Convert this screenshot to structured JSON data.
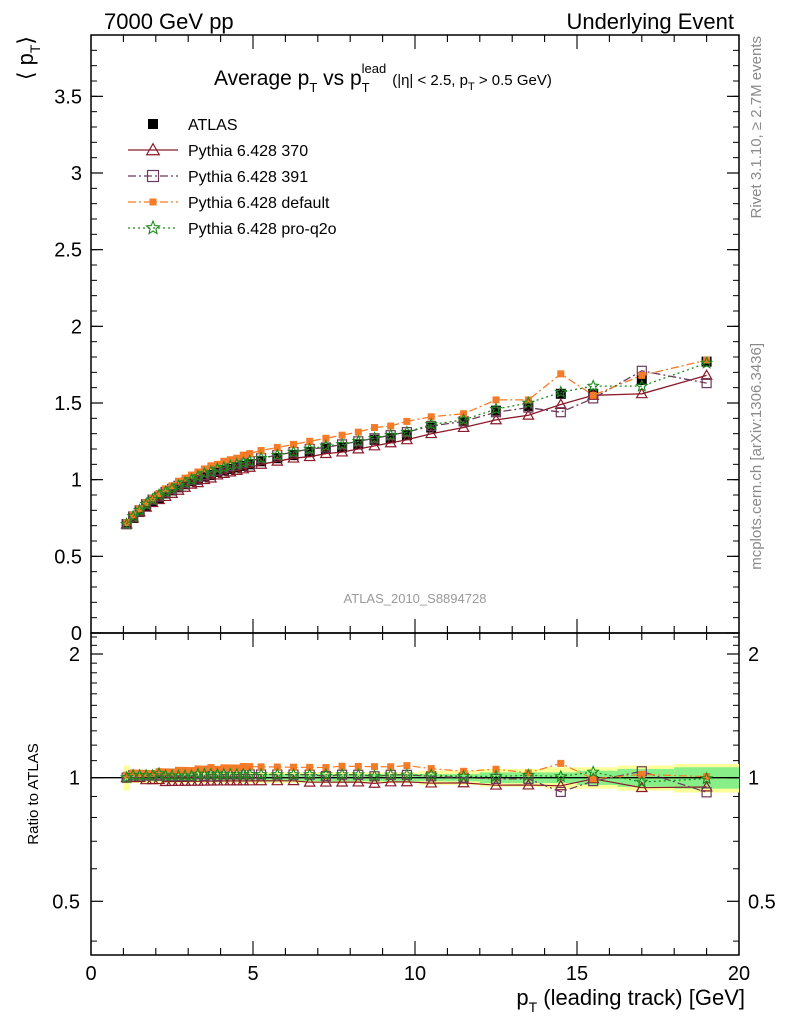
{
  "header": {
    "left": "7000 GeV pp",
    "right": "Underlying Event"
  },
  "side_labels": {
    "rivet": "Rivet 3.1.10, ≥ 2.7M events",
    "mcplots": "mcplots.cern.ch [arXiv:1306.3436]"
  },
  "watermark": "ATLAS_2010_S8894728",
  "title": {
    "main": "Average p",
    "main_sub": "T",
    "vs": " vs p",
    "vs_sub": "T",
    "vs_sup": "lead",
    "cuts_a": "(|η| < 2.5, p",
    "cuts_sub": "T",
    "cuts_b": " > 0.5 GeV)"
  },
  "ylabel_main": {
    "open": "⟨ p",
    "sub": "T",
    "close": "⟩"
  },
  "ylabel_ratio": "Ratio to ATLAS",
  "xlabel": {
    "p": "p",
    "sub": "T",
    "rest": " (leading track) [GeV]"
  },
  "chart_data": [
    {
      "type": "scatter",
      "panel": "main",
      "xlim": [
        0,
        20
      ],
      "ylim": [
        0,
        3.9
      ],
      "x_ticks": [
        "0",
        "5",
        "10",
        "15",
        "20"
      ],
      "y_ticks": [
        "0",
        "0.5",
        "1",
        "1.5",
        "2",
        "2.5",
        "3",
        "3.5"
      ],
      "x": [
        1.1,
        1.3,
        1.5,
        1.7,
        1.9,
        2.1,
        2.3,
        2.5,
        2.7,
        2.9,
        3.1,
        3.3,
        3.5,
        3.7,
        3.9,
        4.1,
        4.3,
        4.5,
        4.7,
        4.9,
        5.25,
        5.75,
        6.25,
        6.75,
        7.25,
        7.75,
        8.25,
        8.75,
        9.25,
        9.75,
        10.5,
        11.5,
        12.5,
        13.5,
        14.5,
        15.5,
        17,
        19
      ],
      "series": [
        {
          "name": "ATLAS",
          "color": "#000000",
          "marker": "filled-square",
          "values": [
            0.71,
            0.75,
            0.79,
            0.83,
            0.86,
            0.88,
            0.91,
            0.93,
            0.95,
            0.97,
            0.99,
            1.0,
            1.02,
            1.03,
            1.05,
            1.06,
            1.07,
            1.08,
            1.09,
            1.1,
            1.12,
            1.14,
            1.16,
            1.18,
            1.2,
            1.21,
            1.23,
            1.26,
            1.27,
            1.29,
            1.34,
            1.38,
            1.45,
            1.48,
            1.56,
            1.56,
            1.65,
            1.77
          ]
        },
        {
          "name": "Pythia 6.428 370",
          "color": "#8b1a2a",
          "marker": "open-triangle",
          "line": "solid",
          "values": [
            0.71,
            0.75,
            0.79,
            0.82,
            0.85,
            0.87,
            0.89,
            0.91,
            0.93,
            0.95,
            0.97,
            0.98,
            1.0,
            1.01,
            1.03,
            1.04,
            1.05,
            1.06,
            1.07,
            1.08,
            1.1,
            1.12,
            1.14,
            1.15,
            1.17,
            1.18,
            1.2,
            1.22,
            1.24,
            1.26,
            1.3,
            1.34,
            1.39,
            1.42,
            1.49,
            1.55,
            1.56,
            1.68
          ]
        },
        {
          "name": "Pythia 6.428 391",
          "color": "#6b3a5a",
          "marker": "open-square",
          "line": "dashdot",
          "values": [
            0.71,
            0.76,
            0.8,
            0.84,
            0.87,
            0.89,
            0.92,
            0.94,
            0.96,
            0.98,
            1.0,
            1.02,
            1.03,
            1.05,
            1.06,
            1.08,
            1.09,
            1.1,
            1.11,
            1.12,
            1.14,
            1.16,
            1.18,
            1.2,
            1.21,
            1.23,
            1.25,
            1.27,
            1.29,
            1.31,
            1.35,
            1.38,
            1.44,
            1.47,
            1.44,
            1.53,
            1.71,
            1.63
          ]
        },
        {
          "name": "Pythia 6.428 default",
          "color": "#f47b28",
          "marker": "filled-square",
          "line": "dashdot",
          "values": [
            0.72,
            0.77,
            0.81,
            0.85,
            0.88,
            0.91,
            0.94,
            0.96,
            0.99,
            1.01,
            1.03,
            1.05,
            1.07,
            1.09,
            1.1,
            1.12,
            1.13,
            1.14,
            1.16,
            1.17,
            1.19,
            1.21,
            1.23,
            1.25,
            1.27,
            1.29,
            1.31,
            1.34,
            1.35,
            1.38,
            1.41,
            1.43,
            1.52,
            1.52,
            1.69,
            1.55,
            1.68,
            1.78
          ]
        },
        {
          "name": "Pythia 6.428 pro-q2o",
          "color": "#1f8a1f",
          "marker": "open-star",
          "line": "dotted",
          "values": [
            0.71,
            0.76,
            0.8,
            0.84,
            0.87,
            0.9,
            0.92,
            0.94,
            0.96,
            0.98,
            1.0,
            1.02,
            1.04,
            1.05,
            1.07,
            1.08,
            1.09,
            1.1,
            1.11,
            1.12,
            1.14,
            1.16,
            1.18,
            1.2,
            1.22,
            1.23,
            1.25,
            1.27,
            1.29,
            1.31,
            1.36,
            1.39,
            1.46,
            1.5,
            1.57,
            1.61,
            1.61,
            1.76
          ]
        }
      ]
    },
    {
      "type": "scatter",
      "panel": "ratio",
      "xlim": [
        0,
        20
      ],
      "ylim": [
        0.37,
        2.25
      ],
      "log_y": true,
      "y_ticks": [
        "0.5",
        "1",
        "2"
      ],
      "band": "ATLAS uncertainty (green 1σ inner, yellow outer)",
      "band_inner": [
        0.03,
        0.02,
        0.02,
        0.02,
        0.02,
        0.02,
        0.02,
        0.02,
        0.02,
        0.02,
        0.02,
        0.02,
        0.02,
        0.02,
        0.02,
        0.02,
        0.02,
        0.02,
        0.02,
        0.02,
        0.02,
        0.02,
        0.02,
        0.02,
        0.02,
        0.02,
        0.02,
        0.02,
        0.02,
        0.02,
        0.02,
        0.02,
        0.03,
        0.03,
        0.03,
        0.04,
        0.05,
        0.06
      ],
      "band_outer": [
        0.07,
        0.03,
        0.03,
        0.03,
        0.03,
        0.03,
        0.03,
        0.03,
        0.03,
        0.03,
        0.03,
        0.03,
        0.03,
        0.03,
        0.03,
        0.03,
        0.03,
        0.03,
        0.03,
        0.03,
        0.03,
        0.03,
        0.03,
        0.03,
        0.03,
        0.03,
        0.03,
        0.03,
        0.03,
        0.03,
        0.04,
        0.04,
        0.05,
        0.05,
        0.06,
        0.06,
        0.07,
        0.08
      ]
    }
  ]
}
